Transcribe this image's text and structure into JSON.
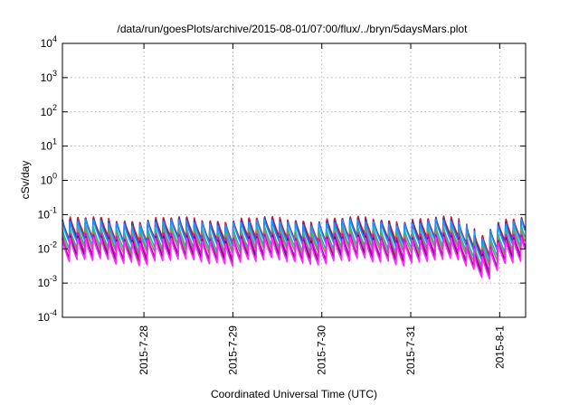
{
  "chart_data": {
    "type": "line",
    "title": "/data/run/goesPlots/archive/2015-08-01/07:00/flux/../bryn/5daysMars.plot",
    "xlabel": "Coordinated Universal Time (UTC)",
    "ylabel": "cSv/day",
    "yscale": "log",
    "ylim": [
      0.0001,
      10000
    ],
    "xlim": [
      "2015-07-27 02:00",
      "2015-08-01 07:00"
    ],
    "grid": true,
    "legend": "none",
    "y_ticks": [
      {
        "base": "10",
        "exp": "4"
      },
      {
        "base": "10",
        "exp": "3"
      },
      {
        "base": "10",
        "exp": "2"
      },
      {
        "base": "10",
        "exp": "1"
      },
      {
        "base": "10",
        "exp": "0"
      },
      {
        "base": "10",
        "exp": "-1"
      },
      {
        "base": "10",
        "exp": "-2"
      },
      {
        "base": "10",
        "exp": "-3"
      },
      {
        "base": "10",
        "exp": "-4"
      }
    ],
    "x_ticks": [
      "2015-7-28",
      "2015-7-29",
      "2015-7-30",
      "2015-7-31",
      "2015-8-1"
    ],
    "orbit_period_hours": 2.1,
    "dip_time": "2015-07-31 18:00",
    "series": [
      {
        "color": "#e8141e",
        "peak": 0.072,
        "trough": 0.021
      },
      {
        "color": "#3a3aa8",
        "peak": 0.065,
        "trough": 0.018
      },
      {
        "color": "#1f8fff",
        "peak": 0.058,
        "trough": 0.016
      },
      {
        "color": "#20b4b4",
        "peak": 0.038,
        "trough": 0.011
      },
      {
        "color": "#8e8e5a",
        "peak": 0.03,
        "trough": 0.009
      },
      {
        "color": "#e800e8",
        "peak": 0.024,
        "trough": 0.0065
      },
      {
        "color": "#5a1a5a",
        "peak": 0.02,
        "trough": 0.0055
      },
      {
        "color": "#ff2aff",
        "peak": 0.018,
        "trough": 0.0045
      }
    ]
  }
}
